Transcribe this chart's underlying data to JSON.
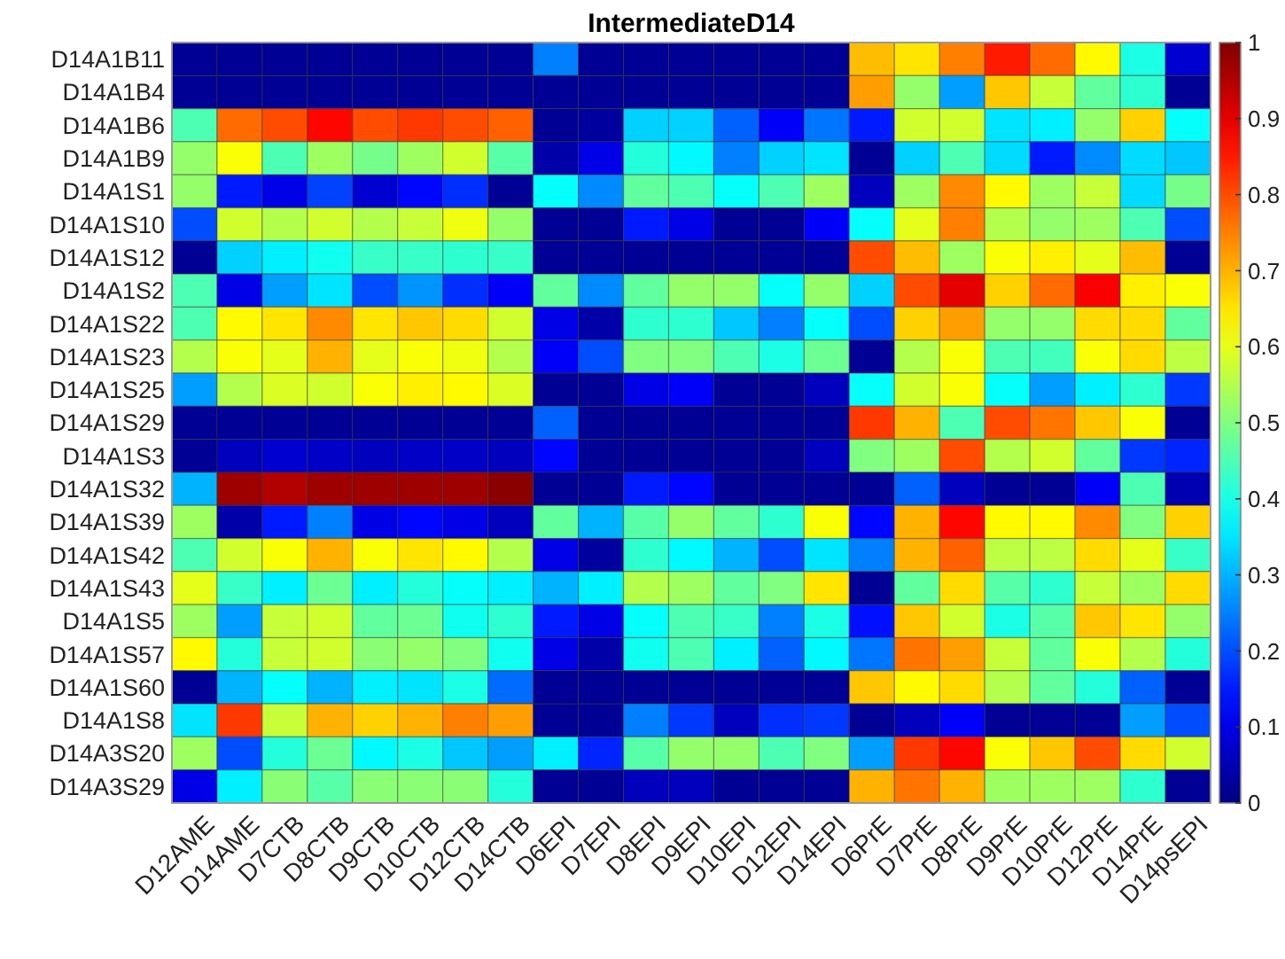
{
  "chart_data": {
    "type": "heatmap",
    "title": "IntermediateD14",
    "categories": [
      "D12AME",
      "D14AME",
      "D7CTB",
      "D8CTB",
      "D9CTB",
      "D10CTB",
      "D12CTB",
      "D14CTB",
      "D6EPI",
      "D7EPI",
      "D8EPI",
      "D9EPI",
      "D10EPI",
      "D12EPI",
      "D14EPI",
      "D6PrE",
      "D7PrE",
      "D8PrE",
      "D9PrE",
      "D10PrE",
      "D12PrE",
      "D14PrE",
      "D14psEPI"
    ],
    "y_categories": [
      "D14A1B11",
      "D14A1B4",
      "D14A1B6",
      "D14A1B9",
      "D14A1S1",
      "D14A1S10",
      "D14A1S12",
      "D14A1S2",
      "D14A1S22",
      "D14A1S23",
      "D14A1S25",
      "D14A1S29",
      "D14A1S3",
      "D14A1S32",
      "D14A1S39",
      "D14A1S42",
      "D14A1S43",
      "D14A1S5",
      "D14A1S57",
      "D14A1S60",
      "D14A1S8",
      "D14A3S20",
      "D14A3S29"
    ],
    "cells": [
      [
        0.02,
        0.02,
        0.02,
        0.02,
        0.02,
        0.02,
        0.02,
        0.02,
        0.25,
        0.02,
        0.02,
        0.02,
        0.02,
        0.02,
        0.02,
        0.69,
        0.65,
        0.75,
        0.85,
        0.77,
        0.63,
        0.4,
        0.08
      ],
      [
        0.02,
        0.02,
        0.02,
        0.02,
        0.02,
        0.02,
        0.02,
        0.02,
        0.02,
        0.02,
        0.02,
        0.02,
        0.02,
        0.02,
        0.02,
        0.72,
        0.52,
        0.28,
        0.68,
        0.57,
        0.47,
        0.42,
        0.02
      ],
      [
        0.45,
        0.77,
        0.8,
        0.87,
        0.8,
        0.82,
        0.8,
        0.78,
        0.02,
        0.03,
        0.33,
        0.33,
        0.22,
        0.12,
        0.24,
        0.15,
        0.58,
        0.58,
        0.35,
        0.36,
        0.52,
        0.67,
        0.38
      ],
      [
        0.52,
        0.62,
        0.45,
        0.53,
        0.49,
        0.53,
        0.58,
        0.46,
        0.04,
        0.1,
        0.41,
        0.37,
        0.25,
        0.33,
        0.35,
        0.02,
        0.33,
        0.45,
        0.34,
        0.15,
        0.26,
        0.34,
        0.32
      ],
      [
        0.52,
        0.15,
        0.1,
        0.19,
        0.08,
        0.13,
        0.17,
        0.02,
        0.38,
        0.26,
        0.47,
        0.45,
        0.38,
        0.45,
        0.53,
        0.06,
        0.53,
        0.74,
        0.63,
        0.53,
        0.57,
        0.34,
        0.49
      ],
      [
        0.2,
        0.58,
        0.55,
        0.58,
        0.55,
        0.57,
        0.61,
        0.52,
        0.02,
        0.02,
        0.15,
        0.1,
        0.02,
        0.02,
        0.12,
        0.38,
        0.6,
        0.75,
        0.55,
        0.52,
        0.53,
        0.45,
        0.2
      ],
      [
        0.02,
        0.33,
        0.36,
        0.39,
        0.43,
        0.43,
        0.42,
        0.43,
        0.02,
        0.02,
        0.02,
        0.02,
        0.02,
        0.02,
        0.02,
        0.8,
        0.69,
        0.53,
        0.62,
        0.64,
        0.6,
        0.69,
        0.02
      ],
      [
        0.45,
        0.1,
        0.28,
        0.35,
        0.2,
        0.27,
        0.17,
        0.12,
        0.47,
        0.26,
        0.47,
        0.52,
        0.52,
        0.38,
        0.52,
        0.33,
        0.8,
        0.9,
        0.67,
        0.77,
        0.88,
        0.64,
        0.62
      ],
      [
        0.45,
        0.63,
        0.65,
        0.74,
        0.65,
        0.68,
        0.66,
        0.58,
        0.1,
        0.04,
        0.42,
        0.42,
        0.32,
        0.25,
        0.38,
        0.2,
        0.67,
        0.72,
        0.52,
        0.52,
        0.66,
        0.66,
        0.47
      ],
      [
        0.55,
        0.62,
        0.6,
        0.7,
        0.6,
        0.62,
        0.61,
        0.55,
        0.12,
        0.2,
        0.5,
        0.5,
        0.45,
        0.4,
        0.48,
        0.02,
        0.55,
        0.62,
        0.45,
        0.44,
        0.62,
        0.66,
        0.56
      ],
      [
        0.28,
        0.55,
        0.59,
        0.58,
        0.62,
        0.64,
        0.63,
        0.59,
        0.02,
        0.02,
        0.1,
        0.12,
        0.02,
        0.02,
        0.06,
        0.38,
        0.58,
        0.62,
        0.38,
        0.28,
        0.36,
        0.42,
        0.18
      ],
      [
        0.02,
        0.02,
        0.02,
        0.02,
        0.02,
        0.02,
        0.02,
        0.02,
        0.22,
        0.02,
        0.02,
        0.02,
        0.02,
        0.02,
        0.02,
        0.82,
        0.7,
        0.45,
        0.8,
        0.76,
        0.68,
        0.62,
        0.02
      ],
      [
        0.02,
        0.06,
        0.08,
        0.07,
        0.06,
        0.07,
        0.07,
        0.06,
        0.13,
        0.02,
        0.02,
        0.02,
        0.02,
        0.02,
        0.06,
        0.5,
        0.53,
        0.8,
        0.55,
        0.58,
        0.47,
        0.18,
        0.16
      ],
      [
        0.3,
        0.97,
        0.95,
        0.97,
        0.97,
        0.97,
        0.97,
        0.99,
        0.02,
        0.02,
        0.15,
        0.13,
        0.02,
        0.02,
        0.02,
        0.02,
        0.22,
        0.06,
        0.02,
        0.02,
        0.12,
        0.45,
        0.05
      ],
      [
        0.53,
        0.04,
        0.15,
        0.25,
        0.1,
        0.13,
        0.1,
        0.06,
        0.47,
        0.3,
        0.46,
        0.52,
        0.47,
        0.42,
        0.62,
        0.13,
        0.7,
        0.87,
        0.63,
        0.63,
        0.74,
        0.5,
        0.67
      ],
      [
        0.45,
        0.58,
        0.62,
        0.7,
        0.62,
        0.65,
        0.63,
        0.55,
        0.1,
        0.03,
        0.42,
        0.37,
        0.3,
        0.2,
        0.35,
        0.25,
        0.7,
        0.78,
        0.56,
        0.56,
        0.66,
        0.6,
        0.43
      ],
      [
        0.6,
        0.43,
        0.36,
        0.48,
        0.36,
        0.41,
        0.38,
        0.36,
        0.3,
        0.36,
        0.55,
        0.53,
        0.47,
        0.5,
        0.65,
        0.02,
        0.47,
        0.66,
        0.46,
        0.42,
        0.57,
        0.53,
        0.66
      ],
      [
        0.53,
        0.28,
        0.57,
        0.58,
        0.47,
        0.48,
        0.39,
        0.42,
        0.15,
        0.1,
        0.38,
        0.45,
        0.43,
        0.25,
        0.4,
        0.14,
        0.68,
        0.58,
        0.4,
        0.46,
        0.68,
        0.65,
        0.52
      ],
      [
        0.63,
        0.41,
        0.57,
        0.58,
        0.51,
        0.52,
        0.5,
        0.39,
        0.1,
        0.04,
        0.39,
        0.45,
        0.36,
        0.22,
        0.37,
        0.24,
        0.76,
        0.72,
        0.57,
        0.47,
        0.62,
        0.55,
        0.41
      ],
      [
        0.02,
        0.3,
        0.38,
        0.3,
        0.36,
        0.35,
        0.4,
        0.23,
        0.02,
        0.02,
        0.02,
        0.02,
        0.02,
        0.02,
        0.02,
        0.68,
        0.63,
        0.66,
        0.55,
        0.47,
        0.41,
        0.22,
        0.02
      ],
      [
        0.35,
        0.82,
        0.57,
        0.7,
        0.67,
        0.7,
        0.75,
        0.72,
        0.02,
        0.02,
        0.25,
        0.18,
        0.06,
        0.17,
        0.18,
        0.02,
        0.06,
        0.12,
        0.02,
        0.02,
        0.02,
        0.28,
        0.2
      ],
      [
        0.53,
        0.2,
        0.41,
        0.48,
        0.37,
        0.4,
        0.32,
        0.28,
        0.36,
        0.16,
        0.46,
        0.52,
        0.52,
        0.45,
        0.5,
        0.28,
        0.82,
        0.87,
        0.62,
        0.68,
        0.8,
        0.66,
        0.58
      ],
      [
        0.1,
        0.36,
        0.51,
        0.46,
        0.51,
        0.51,
        0.51,
        0.41,
        0.02,
        0.02,
        0.06,
        0.06,
        0.02,
        0.02,
        0.02,
        0.7,
        0.76,
        0.7,
        0.53,
        0.53,
        0.53,
        0.42,
        0.02
      ]
    ],
    "clim": [
      0,
      1
    ],
    "cticks": [
      0,
      0.1,
      0.2,
      0.3,
      0.4,
      0.5,
      0.6,
      0.7,
      0.8,
      0.9,
      1
    ]
  }
}
